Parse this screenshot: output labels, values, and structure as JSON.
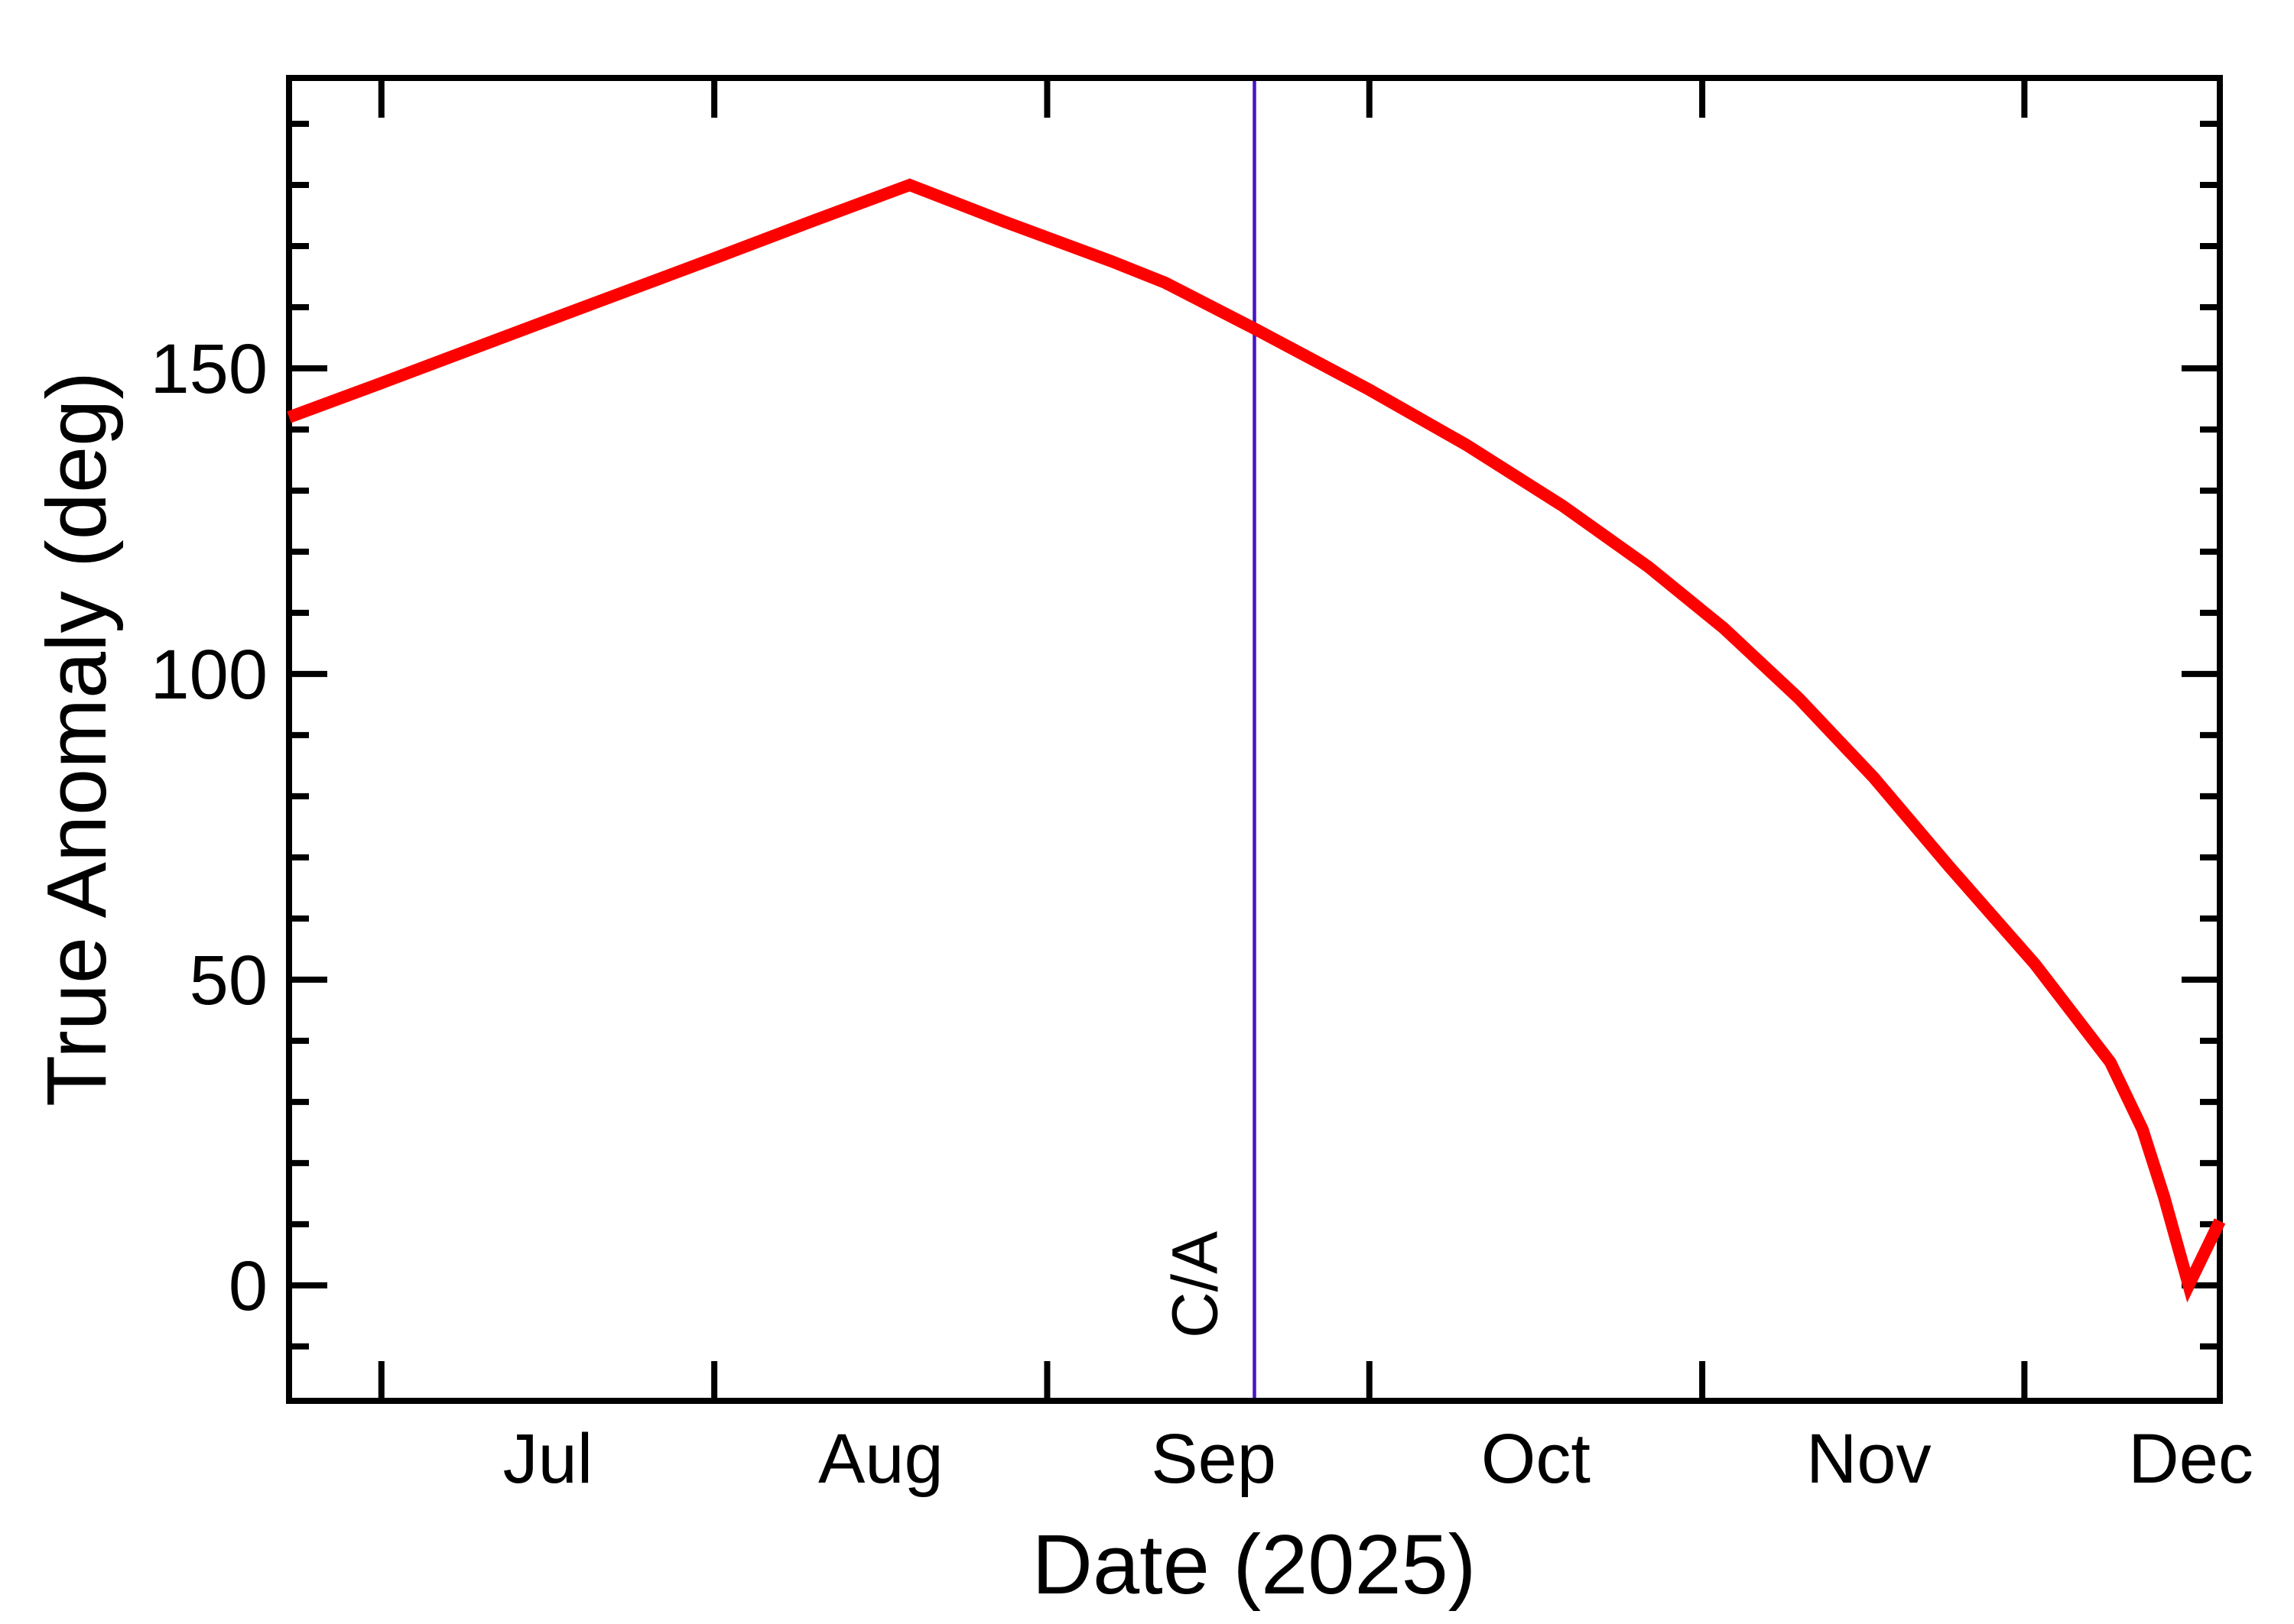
{
  "figure": {
    "background_color": "#ffffff",
    "axis_color": "#000000",
    "frame": "box with inward ticks on all four sides"
  },
  "chart_data": {
    "type": "line",
    "title": "",
    "xlabel": "Date (2025)",
    "ylabel": "True Anomaly (deg)",
    "grid": "off",
    "legend": "none",
    "x_axis": {
      "unit": "day_of_year_2025",
      "range_doy": [
        173.4,
        353.2
      ],
      "range_dates": [
        "Jun 22",
        "Dec 19"
      ],
      "tick_doys": [
        182,
        213,
        244,
        274,
        305,
        335
      ],
      "tick_dates": [
        "Jul 1",
        "Aug 1",
        "Sep 1",
        "Oct 1",
        "Nov 1",
        "Dec 1"
      ],
      "month_labels": [
        {
          "label": "Jul",
          "doy": 197.5
        },
        {
          "label": "Aug",
          "doy": 228.5
        },
        {
          "label": "Sep",
          "doy": 259.5
        },
        {
          "label": "Oct",
          "doy": 289.5
        },
        {
          "label": "Nov",
          "doy": 320.5
        },
        {
          "label": "Dec",
          "doy": 350.5
        }
      ]
    },
    "y_axis": {
      "range": [
        -18.9,
        197.5
      ],
      "major_ticks": [
        0,
        50,
        100,
        150
      ],
      "major_tick_labels": [
        "0",
        "50",
        "100",
        "150"
      ],
      "minor_ticks": [
        -10,
        10,
        20,
        30,
        40,
        60,
        70,
        80,
        90,
        110,
        120,
        130,
        140,
        160,
        170,
        180,
        190
      ]
    },
    "series": [
      {
        "name": "true-anomaly",
        "color": "#ff0000",
        "stroke_width": 16,
        "points": [
          {
            "date": "Jun 22",
            "doy": 173.4,
            "deg": 142.0
          },
          {
            "date": "Jul 1",
            "doy": 182.0,
            "deg": 147.6
          },
          {
            "date": "Jul 16",
            "doy": 197.0,
            "deg": 157.5
          },
          {
            "date": "Aug 1",
            "doy": 213.0,
            "deg": 168.0
          },
          {
            "date": "Aug 10",
            "doy": 222.0,
            "deg": 174.0
          },
          {
            "date": "Aug 19",
            "doy": 231.2,
            "deg": 180.0
          },
          {
            "date": "Aug 28",
            "doy": 240.0,
            "deg": 174.0
          },
          {
            "date": "Sep 7",
            "doy": 250.0,
            "deg": 167.5
          },
          {
            "date": "Sep 12",
            "doy": 255.0,
            "deg": 164.0
          },
          {
            "date": "Sep 20",
            "doy": 263.3,
            "deg": 156.5
          },
          {
            "date": "Oct 1",
            "doy": 274.0,
            "deg": 146.5
          },
          {
            "date": "Oct 10",
            "doy": 283.0,
            "deg": 137.5
          },
          {
            "date": "Oct 19",
            "doy": 292.0,
            "deg": 127.5
          },
          {
            "date": "Oct 27",
            "doy": 300.0,
            "deg": 117.5
          },
          {
            "date": "Nov 3",
            "doy": 307.0,
            "deg": 107.5
          },
          {
            "date": "Nov 10",
            "doy": 314.0,
            "deg": 96.0
          },
          {
            "date": "Nov 17",
            "doy": 321.0,
            "deg": 83.0
          },
          {
            "date": "Nov 24",
            "doy": 328.0,
            "deg": 68.5
          },
          {
            "date": "Dec 2",
            "doy": 336.0,
            "deg": 52.5
          },
          {
            "date": "Dec 9",
            "doy": 343.0,
            "deg": 36.5
          },
          {
            "date": "Dec 12",
            "doy": 346.0,
            "deg": 25.5
          },
          {
            "date": "Dec 14",
            "doy": 348.0,
            "deg": 14.5
          },
          {
            "date": "Dec 16",
            "doy": 350.3,
            "deg": 0.0
          },
          {
            "date": "Dec 19",
            "doy": 353.2,
            "deg": 10.5
          }
        ]
      }
    ],
    "annotations": [
      {
        "type": "vline",
        "label": "C/A",
        "doy": 263.3,
        "date": "Sep 20",
        "color": "#4812c8",
        "stroke_width": 4.5
      }
    ]
  }
}
